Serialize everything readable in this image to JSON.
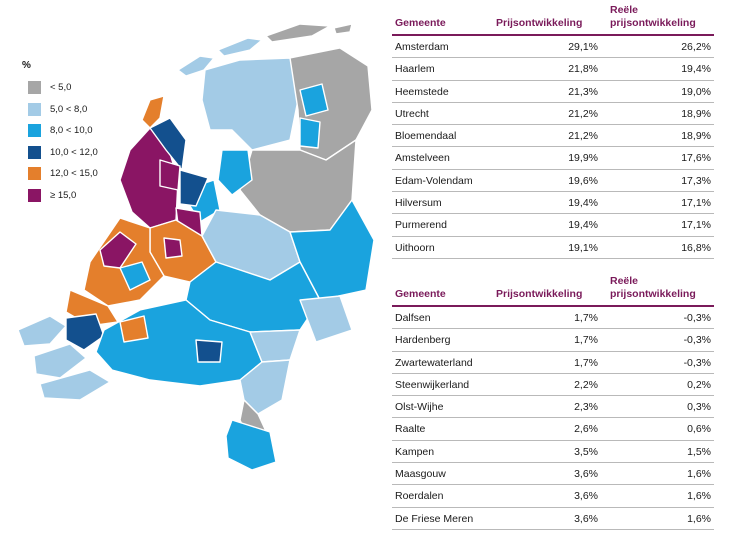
{
  "legend": {
    "title": "%",
    "items": [
      {
        "label": "< 5,0",
        "color": "#a6a6a6"
      },
      {
        "label": "5,0 < 8,0",
        "color": "#a3cbe6"
      },
      {
        "label": "8,0 < 10,0",
        "color": "#1aa3de"
      },
      {
        "label": "10,0 < 12,0",
        "color": "#13508e"
      },
      {
        "label": "12,0 < 15,0",
        "color": "#e47f2c"
      },
      {
        "label": "≥ 15,0",
        "color": "#8a1564"
      }
    ]
  },
  "table_top": {
    "headers": {
      "gemeente": "Gemeente",
      "prijs": "Prijsontwikkeling",
      "reeel_1": "Reële",
      "reeel_2": "prijsontwikkeling"
    },
    "rows": [
      {
        "gemeente": "Amsterdam",
        "prijs": "29,1%",
        "reeel": "26,2%"
      },
      {
        "gemeente": "Haarlem",
        "prijs": "21,8%",
        "reeel": "19,4%"
      },
      {
        "gemeente": "Heemstede",
        "prijs": "21,3%",
        "reeel": "19,0%"
      },
      {
        "gemeente": "Utrecht",
        "prijs": "21,2%",
        "reeel": "18,9%"
      },
      {
        "gemeente": "Bloemendaal",
        "prijs": "21,2%",
        "reeel": "18,9%"
      },
      {
        "gemeente": "Amstelveen",
        "prijs": "19,9%",
        "reeel": "17,6%"
      },
      {
        "gemeente": "Edam-Volendam",
        "prijs": "19,6%",
        "reeel": "17,3%"
      },
      {
        "gemeente": "Hilversum",
        "prijs": "19,4%",
        "reeel": "17,1%"
      },
      {
        "gemeente": "Purmerend",
        "prijs": "19,4%",
        "reeel": "17,1%"
      },
      {
        "gemeente": "Uithoorn",
        "prijs": "19,1%",
        "reeel": "16,8%"
      }
    ]
  },
  "table_bottom": {
    "headers": {
      "gemeente": "Gemeente",
      "prijs": "Prijsontwikkeling",
      "reeel_1": "Reële",
      "reeel_2": "prijsontwikkeling"
    },
    "rows": [
      {
        "gemeente": "Dalfsen",
        "prijs": "1,7%",
        "reeel": "-0,3%"
      },
      {
        "gemeente": "Hardenberg",
        "prijs": "1,7%",
        "reeel": "-0,3%"
      },
      {
        "gemeente": "Zwartewaterland",
        "prijs": "1,7%",
        "reeel": "-0,3%"
      },
      {
        "gemeente": "Steenwijkerland",
        "prijs": "2,2%",
        "reeel": "0,2%"
      },
      {
        "gemeente": "Olst-Wijhe",
        "prijs": "2,3%",
        "reeel": "0,3%"
      },
      {
        "gemeente": "Raalte",
        "prijs": "2,6%",
        "reeel": "0,6%"
      },
      {
        "gemeente": "Kampen",
        "prijs": "3,5%",
        "reeel": "1,5%"
      },
      {
        "gemeente": "Maasgouw",
        "prijs": "3,6%",
        "reeel": "1,6%"
      },
      {
        "gemeente": "Roerdalen",
        "prijs": "3,6%",
        "reeel": "1,6%"
      },
      {
        "gemeente": "De Friese Meren",
        "prijs": "3,6%",
        "reeel": "1,6%"
      }
    ]
  }
}
